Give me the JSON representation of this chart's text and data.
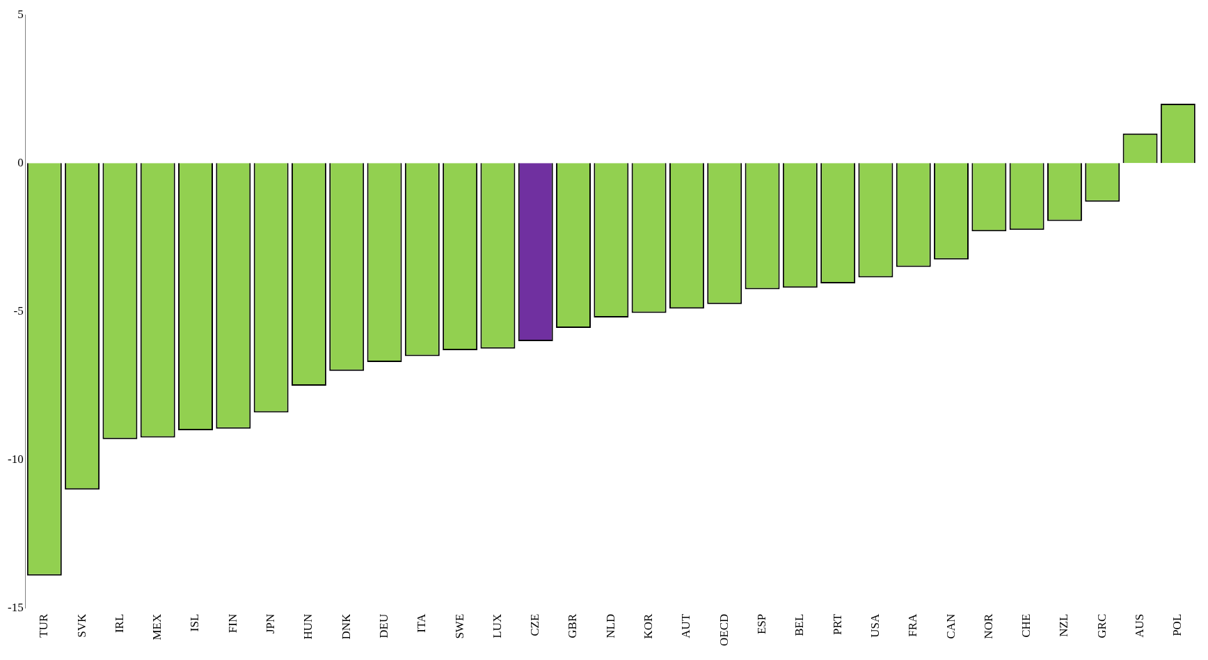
{
  "chart_data": {
    "type": "bar",
    "categories": [
      "TUR",
      "SVK",
      "IRL",
      "MEX",
      "ISL",
      "FIN",
      "JPN",
      "HUN",
      "DNK",
      "DEU",
      "ITA",
      "SWE",
      "LUX",
      "CZE",
      "GBR",
      "NLD",
      "KOR",
      "AUT",
      "OECD",
      "ESP",
      "BEL",
      "PRT",
      "USA",
      "FRA",
      "CAN",
      "NOR",
      "CHE",
      "NZL",
      "GRC",
      "AUS",
      "POL"
    ],
    "values": [
      -13.9,
      -11.0,
      -9.3,
      -9.25,
      -9.0,
      -8.95,
      -8.4,
      -7.5,
      -7.0,
      -6.7,
      -6.5,
      -6.3,
      -6.25,
      -6.0,
      -5.55,
      -5.2,
      -5.05,
      -4.9,
      -4.75,
      -4.25,
      -4.2,
      -4.05,
      -3.85,
      -3.5,
      -3.25,
      -2.3,
      -2.25,
      -1.95,
      -1.3,
      1.0,
      2.0
    ],
    "colors": [
      "#92d050",
      "#92d050",
      "#92d050",
      "#92d050",
      "#92d050",
      "#92d050",
      "#92d050",
      "#92d050",
      "#92d050",
      "#92d050",
      "#92d050",
      "#92d050",
      "#92d050",
      "#7030a0",
      "#92d050",
      "#92d050",
      "#92d050",
      "#92d050",
      "#92d050",
      "#92d050",
      "#92d050",
      "#92d050",
      "#92d050",
      "#92d050",
      "#92d050",
      "#92d050",
      "#92d050",
      "#92d050",
      "#92d050",
      "#92d050",
      "#92d050"
    ],
    "ylim": [
      -15,
      5
    ],
    "yticks": [
      -15,
      -10,
      -5,
      0,
      5
    ],
    "grid": false,
    "legend": false
  }
}
